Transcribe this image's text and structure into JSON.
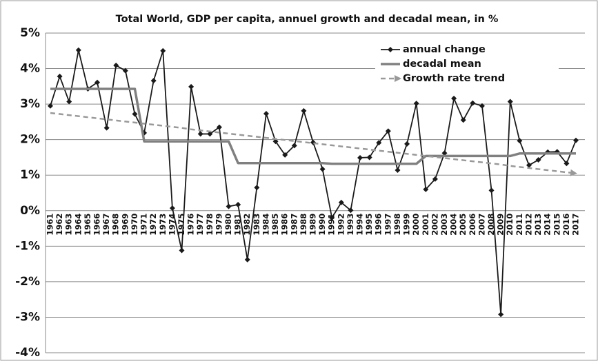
{
  "chart_data": {
    "type": "line",
    "title": "Total World, GDP per capita, annuel growth and decadal mean, in %",
    "categories": [
      "1961",
      "1962",
      "1963",
      "1964",
      "1965",
      "1966",
      "1967",
      "1968",
      "1969",
      "1970",
      "1971",
      "1972",
      "1973",
      "1974",
      "1975",
      "1976",
      "1977",
      "1978",
      "1979",
      "1980",
      "1981",
      "1982",
      "1983",
      "1984",
      "1985",
      "1986",
      "1987",
      "1988",
      "1989",
      "1990",
      "1991",
      "1992",
      "1993",
      "1994",
      "1995",
      "1996",
      "1997",
      "1998",
      "1999",
      "2000",
      "2001",
      "2002",
      "2003",
      "2004",
      "2005",
      "2006",
      "2007",
      "2008",
      "2009",
      "2010",
      "2011",
      "2012",
      "2013",
      "2014",
      "2015",
      "2016",
      "2017"
    ],
    "series": [
      {
        "name": "annual change",
        "color": "#1a1a1a",
        "values": [
          2.95,
          3.78,
          3.07,
          4.52,
          3.43,
          3.61,
          2.33,
          4.09,
          3.94,
          2.72,
          2.19,
          3.66,
          4.5,
          0.07,
          -1.12,
          3.49,
          2.16,
          2.16,
          2.35,
          0.12,
          0.17,
          -1.38,
          0.65,
          2.73,
          1.95,
          1.57,
          1.83,
          2.81,
          1.92,
          1.17,
          -0.2,
          0.23,
          0.01,
          1.49,
          1.5,
          1.91,
          2.24,
          1.14,
          1.88,
          3.02,
          0.6,
          0.89,
          1.62,
          3.16,
          2.55,
          3.03,
          2.95,
          0.57,
          -2.92,
          3.07,
          1.97,
          1.28,
          1.43,
          1.65,
          1.66,
          1.33,
          1.98
        ]
      },
      {
        "name": "decadal mean",
        "color": "#808080",
        "values": [
          3.43,
          3.43,
          3.43,
          3.43,
          3.43,
          3.43,
          3.43,
          3.43,
          3.43,
          3.43,
          1.95,
          1.95,
          1.95,
          1.95,
          1.95,
          1.95,
          1.95,
          1.95,
          1.95,
          1.95,
          1.34,
          1.34,
          1.34,
          1.34,
          1.34,
          1.34,
          1.34,
          1.34,
          1.34,
          1.34,
          1.32,
          1.32,
          1.32,
          1.32,
          1.32,
          1.32,
          1.32,
          1.32,
          1.32,
          1.32,
          1.54,
          1.54,
          1.54,
          1.54,
          1.54,
          1.54,
          1.54,
          1.54,
          1.54,
          1.54,
          1.61,
          1.61,
          1.61,
          1.61,
          1.61,
          1.61,
          1.61
        ]
      },
      {
        "name": "Growth rate trend",
        "color": "#999999",
        "values": [
          2.75,
          2.72,
          2.69,
          2.66,
          2.63,
          2.6,
          2.57,
          2.54,
          2.51,
          2.48,
          2.45,
          2.42,
          2.39,
          2.36,
          2.33,
          2.29,
          2.26,
          2.23,
          2.2,
          2.17,
          2.14,
          2.11,
          2.08,
          2.05,
          2.02,
          1.99,
          1.96,
          1.93,
          1.9,
          1.87,
          1.84,
          1.81,
          1.78,
          1.75,
          1.72,
          1.69,
          1.66,
          1.63,
          1.6,
          1.57,
          1.54,
          1.51,
          1.48,
          1.45,
          1.42,
          1.39,
          1.36,
          1.33,
          1.3,
          1.26,
          1.23,
          1.2,
          1.17,
          1.14,
          1.11,
          1.08,
          1.05
        ]
      }
    ],
    "ylim": [
      -4,
      5
    ],
    "yticks": [
      {
        "value": -4,
        "label": "-4%"
      },
      {
        "value": -3,
        "label": "-3%"
      },
      {
        "value": -2,
        "label": "-2%"
      },
      {
        "value": -1,
        "label": "-1%"
      },
      {
        "value": 0,
        "label": "0%"
      },
      {
        "value": 1,
        "label": "1%"
      },
      {
        "value": 2,
        "label": "2%"
      },
      {
        "value": 3,
        "label": "3%"
      },
      {
        "value": 4,
        "label": "4%"
      },
      {
        "value": 5,
        "label": "5%"
      }
    ],
    "grid": true,
    "legend": "top-right"
  }
}
